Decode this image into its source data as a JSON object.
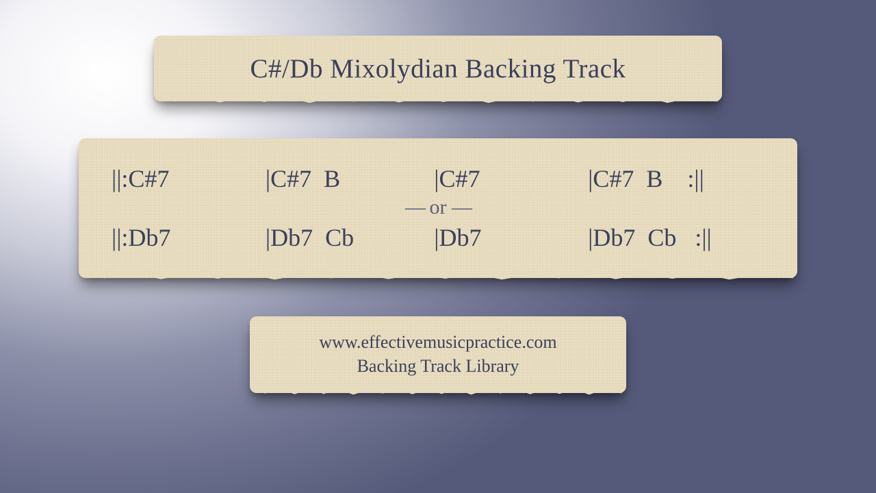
{
  "colors": {
    "card_bg": "#e8ddc0",
    "text": "#3a3f5c",
    "text_muted": "#5a5f7a"
  },
  "title": "C#/Db Mixolydian Backing Track",
  "chords": {
    "row_a": {
      "bar1": "||:C#7",
      "bar2": "|C#7  B",
      "bar3": "|C#7",
      "bar4": "|C#7  B    :||"
    },
    "divider": {
      "left_dash": "—",
      "word": " or ",
      "right_dash": "—"
    },
    "row_b": {
      "bar1": "||:Db7",
      "bar2": "|Db7  Cb",
      "bar3": "|Db7",
      "bar4": "|Db7  Cb   :||"
    }
  },
  "footer": {
    "url": "www.effectivemusicpractice.com",
    "label": "Backing Track Library"
  }
}
